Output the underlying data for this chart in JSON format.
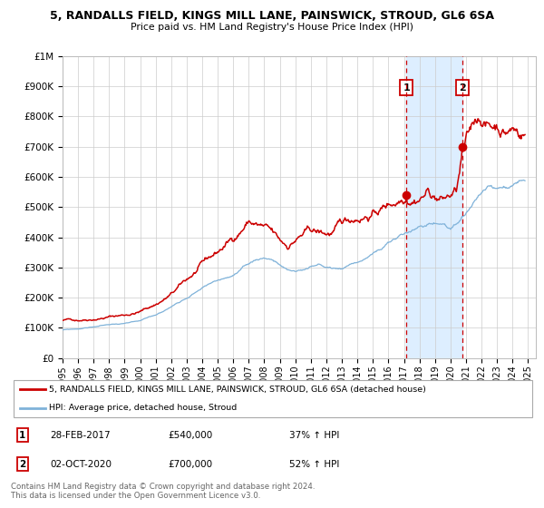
{
  "title": "5, RANDALLS FIELD, KINGS MILL LANE, PAINSWICK, STROUD, GL6 6SA",
  "subtitle": "Price paid vs. HM Land Registry's House Price Index (HPI)",
  "legend_line1": "5, RANDALLS FIELD, KINGS MILL LANE, PAINSWICK, STROUD, GL6 6SA (detached house)",
  "legend_line2": "HPI: Average price, detached house, Stroud",
  "annotation1_date": "28-FEB-2017",
  "annotation1_price": "£540,000",
  "annotation1_text": "37% ↑ HPI",
  "annotation2_date": "02-OCT-2020",
  "annotation2_price": "£700,000",
  "annotation2_text": "52% ↑ HPI",
  "sale1_x": 2017.167,
  "sale2_x": 2020.75,
  "sale1_y": 540000,
  "sale2_y": 700000,
  "red_color": "#cc0000",
  "blue_color": "#7fb2d9",
  "shade_color": "#ddeeff",
  "footer": "Contains HM Land Registry data © Crown copyright and database right 2024.\nThis data is licensed under the Open Government Licence v3.0.",
  "ylim": [
    0,
    1000000
  ],
  "xlim_start": 1995.0,
  "xlim_end": 2025.5,
  "red_waypoints": [
    [
      1995.0,
      125000
    ],
    [
      1996.0,
      128000
    ],
    [
      1997.0,
      138000
    ],
    [
      1998.0,
      148000
    ],
    [
      1999.0,
      155000
    ],
    [
      2000.0,
      168000
    ],
    [
      2001.0,
      195000
    ],
    [
      2002.0,
      230000
    ],
    [
      2003.0,
      275000
    ],
    [
      2004.0,
      320000
    ],
    [
      2005.0,
      355000
    ],
    [
      2006.0,
      400000
    ],
    [
      2007.0,
      468000
    ],
    [
      2007.5,
      455000
    ],
    [
      2008.0,
      440000
    ],
    [
      2008.5,
      410000
    ],
    [
      2009.0,
      375000
    ],
    [
      2009.5,
      360000
    ],
    [
      2010.0,
      385000
    ],
    [
      2010.5,
      400000
    ],
    [
      2011.0,
      405000
    ],
    [
      2011.5,
      395000
    ],
    [
      2012.0,
      390000
    ],
    [
      2012.5,
      395000
    ],
    [
      2013.0,
      410000
    ],
    [
      2013.5,
      420000
    ],
    [
      2014.0,
      435000
    ],
    [
      2014.5,
      450000
    ],
    [
      2015.0,
      460000
    ],
    [
      2015.5,
      475000
    ],
    [
      2016.0,
      490000
    ],
    [
      2016.5,
      505000
    ],
    [
      2017.167,
      540000
    ],
    [
      2017.5,
      548000
    ],
    [
      2018.0,
      565000
    ],
    [
      2018.5,
      590000
    ],
    [
      2019.0,
      575000
    ],
    [
      2019.5,
      565000
    ],
    [
      2020.0,
      575000
    ],
    [
      2020.4,
      590000
    ],
    [
      2020.75,
      700000
    ],
    [
      2021.0,
      735000
    ],
    [
      2021.3,
      760000
    ],
    [
      2021.6,
      800000
    ],
    [
      2022.0,
      820000
    ],
    [
      2022.3,
      800000
    ],
    [
      2022.6,
      790000
    ],
    [
      2023.0,
      800000
    ],
    [
      2023.5,
      790000
    ],
    [
      2024.0,
      800000
    ],
    [
      2024.5,
      790000
    ],
    [
      2024.8,
      795000
    ]
  ],
  "blue_waypoints": [
    [
      1995.0,
      93000
    ],
    [
      1996.0,
      96000
    ],
    [
      1997.0,
      103000
    ],
    [
      1998.0,
      110000
    ],
    [
      1999.0,
      114000
    ],
    [
      2000.0,
      118000
    ],
    [
      2001.0,
      135000
    ],
    [
      2002.0,
      162000
    ],
    [
      2003.0,
      195000
    ],
    [
      2004.0,
      230000
    ],
    [
      2005.0,
      252000
    ],
    [
      2006.0,
      268000
    ],
    [
      2007.0,
      295000
    ],
    [
      2007.5,
      310000
    ],
    [
      2008.0,
      318000
    ],
    [
      2008.5,
      315000
    ],
    [
      2009.0,
      295000
    ],
    [
      2009.5,
      275000
    ],
    [
      2010.0,
      272000
    ],
    [
      2010.5,
      278000
    ],
    [
      2011.0,
      285000
    ],
    [
      2011.5,
      290000
    ],
    [
      2012.0,
      282000
    ],
    [
      2012.5,
      278000
    ],
    [
      2013.0,
      280000
    ],
    [
      2013.5,
      290000
    ],
    [
      2014.0,
      300000
    ],
    [
      2014.5,
      312000
    ],
    [
      2015.0,
      325000
    ],
    [
      2015.5,
      338000
    ],
    [
      2016.0,
      352000
    ],
    [
      2016.5,
      365000
    ],
    [
      2017.0,
      378000
    ],
    [
      2017.5,
      388000
    ],
    [
      2018.0,
      395000
    ],
    [
      2018.5,
      405000
    ],
    [
      2019.0,
      410000
    ],
    [
      2019.5,
      412000
    ],
    [
      2020.0,
      400000
    ],
    [
      2020.5,
      408000
    ],
    [
      2021.0,
      428000
    ],
    [
      2021.5,
      458000
    ],
    [
      2022.0,
      488000
    ],
    [
      2022.5,
      498000
    ],
    [
      2023.0,
      488000
    ],
    [
      2023.5,
      492000
    ],
    [
      2024.0,
      505000
    ],
    [
      2024.5,
      520000
    ],
    [
      2024.8,
      528000
    ]
  ]
}
